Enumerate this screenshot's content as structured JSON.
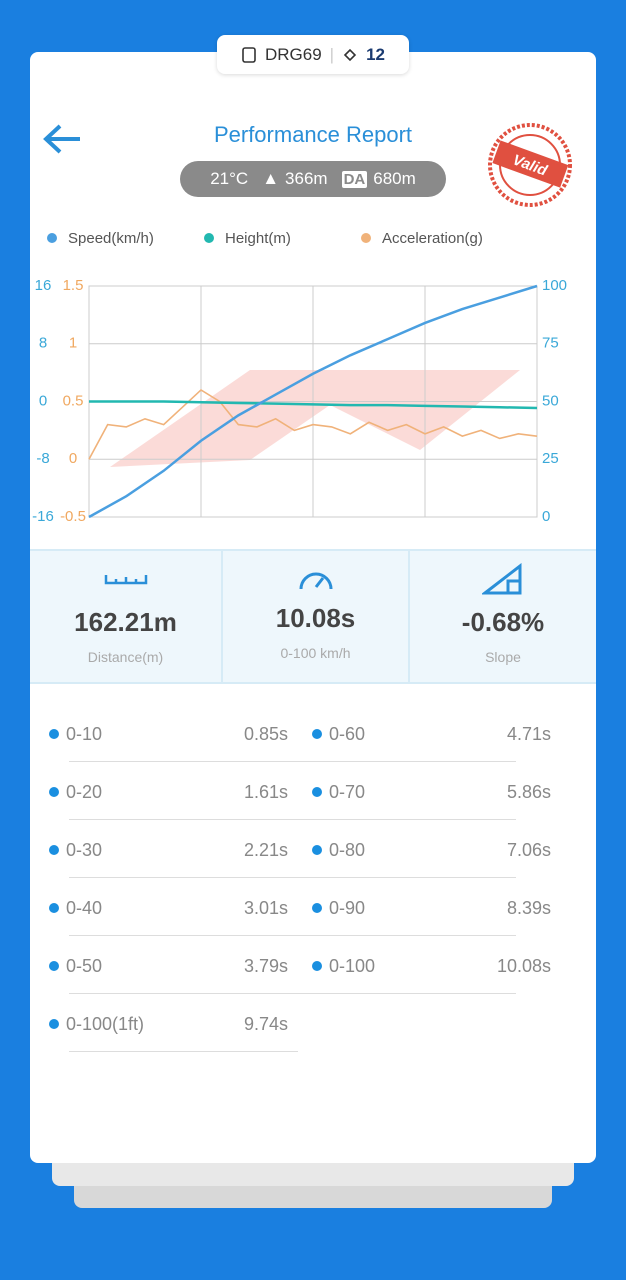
{
  "header": {
    "device": "DRG69",
    "satellites": "12",
    "title": "Performance Report",
    "temperature": "21°C",
    "altitude": "366m",
    "da_badge": "DA",
    "density_altitude": "680m",
    "stamp": "Valid"
  },
  "chart_data": {
    "type": "line",
    "series": [
      {
        "name": "Speed(km/h)",
        "color": "#4a9fe0",
        "axis": "y",
        "values": [
          0,
          9,
          20,
          33,
          44,
          53,
          62,
          70,
          77,
          84,
          90,
          95,
          100
        ]
      },
      {
        "name": "Height(m)",
        "color": "#22b8b0",
        "axis": "y3",
        "values": [
          0,
          0,
          0,
          -0.1,
          -0.2,
          -0.3,
          -0.4,
          -0.5,
          -0.5,
          -0.6,
          -0.7,
          -0.8,
          -0.9
        ]
      },
      {
        "name": "Acceleration(g)",
        "color": "#f0b27a",
        "axis": "y2",
        "values": [
          0,
          0.3,
          0.28,
          0.35,
          0.3,
          0.45,
          0.6,
          0.5,
          0.3,
          0.28,
          0.35,
          0.25,
          0.3,
          0.28,
          0.22,
          0.32,
          0.25,
          0.3,
          0.22,
          0.28,
          0.2,
          0.25,
          0.18,
          0.22,
          0.2
        ]
      }
    ],
    "ylim": [
      0,
      100
    ],
    "yticks": [
      0,
      25,
      50,
      75,
      100
    ],
    "y2lim": [
      -0.5,
      1.5
    ],
    "y2ticks": [
      -0.5,
      0,
      0.5,
      1,
      1.5
    ],
    "y3lim": [
      -16,
      16
    ],
    "y3ticks": [
      -16,
      -8,
      0,
      8,
      16
    ],
    "grid": true
  },
  "stats": [
    {
      "value": "162.21m",
      "label": "Distance(m)"
    },
    {
      "value": "10.08s",
      "label": "0-100 km/h"
    },
    {
      "value": "-0.68%",
      "label": "Slope"
    }
  ],
  "splits": [
    {
      "label": "0-10",
      "time": "0.85s"
    },
    {
      "label": "0-20",
      "time": "1.61s"
    },
    {
      "label": "0-30",
      "time": "2.21s"
    },
    {
      "label": "0-40",
      "time": "3.01s"
    },
    {
      "label": "0-50",
      "time": "3.79s"
    },
    {
      "label": "0-60",
      "time": "4.71s"
    },
    {
      "label": "0-70",
      "time": "5.86s"
    },
    {
      "label": "0-80",
      "time": "7.06s"
    },
    {
      "label": "0-90",
      "time": "8.39s"
    },
    {
      "label": "0-100",
      "time": "10.08s"
    },
    {
      "label": "0-100(1ft)",
      "time": "9.74s"
    }
  ]
}
